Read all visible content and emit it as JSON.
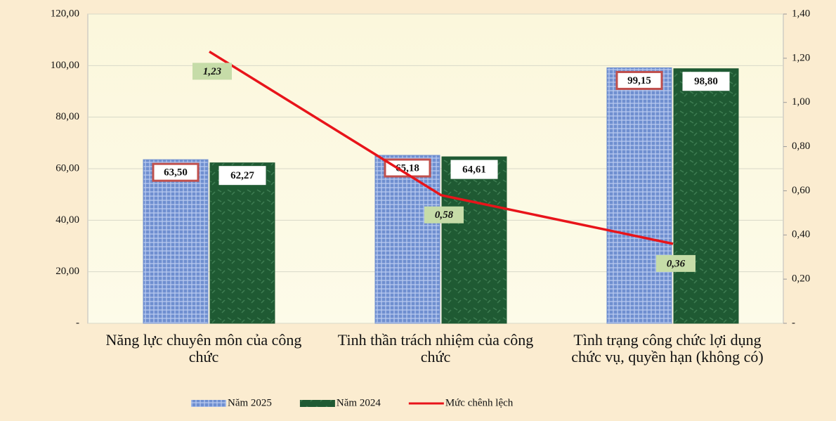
{
  "chart_data": {
    "type": "bar_line",
    "categories": [
      "Năng lực chuyên môn của công chức",
      "Tinh thần trách nhiệm của công chức",
      "Tình trạng công chức lợi dụng chức vụ, quyền hạn (không có)"
    ],
    "series": [
      {
        "name": "Năm 2025",
        "color": "#6f8fd0",
        "type": "bar",
        "values": [
          63.5,
          65.18,
          99.15
        ],
        "value_labels": [
          "63,50",
          "65,18",
          "99,15"
        ]
      },
      {
        "name": "Năm 2024",
        "color": "#1f5a33",
        "type": "bar",
        "values": [
          62.27,
          64.61,
          98.8
        ],
        "value_labels": [
          "62,27",
          "64,61",
          "98,80"
        ]
      },
      {
        "name": "Mức chênh lệch",
        "color": "#e8141a",
        "type": "line",
        "axis": "y2",
        "values": [
          1.23,
          0.58,
          0.36
        ],
        "value_labels": [
          "1,23",
          "0,58",
          "0,36"
        ]
      }
    ],
    "ylim": [
      0,
      120
    ],
    "yticks": [
      {
        "value": 0,
        "label": "-"
      },
      {
        "value": 20,
        "label": "20,00"
      },
      {
        "value": 40,
        "label": "40,00"
      },
      {
        "value": 60,
        "label": "60,00"
      },
      {
        "value": 80,
        "label": "80,00"
      },
      {
        "value": 100,
        "label": "100,00"
      },
      {
        "value": 120,
        "label": "120,00"
      }
    ],
    "y2lim": [
      0,
      1.4
    ],
    "y2ticks": [
      {
        "value": 0,
        "label": "-"
      },
      {
        "value": 0.2,
        "label": "0,20"
      },
      {
        "value": 0.4,
        "label": "0,40"
      },
      {
        "value": 0.6,
        "label": "0,60"
      },
      {
        "value": 0.8,
        "label": "0,80"
      },
      {
        "value": 1.0,
        "label": "1,00"
      },
      {
        "value": 1.2,
        "label": "1,20"
      },
      {
        "value": 1.4,
        "label": "1,40"
      }
    ],
    "grid": true,
    "legend": "bottom"
  }
}
